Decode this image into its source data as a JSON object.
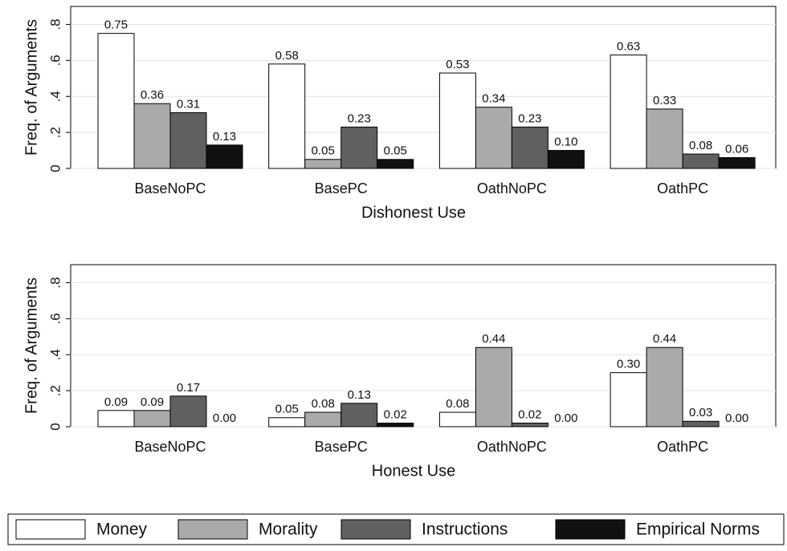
{
  "chart_data": [
    {
      "type": "bar",
      "xlabel": "Dishonest Use",
      "ylabel": "Freq. of Arguments",
      "categories": [
        "BaseNoPC",
        "BasePC",
        "OathNoPC",
        "OathPC"
      ],
      "ylim": [
        0,
        0.9
      ],
      "yticks": [
        0,
        {
          "value": 0.2,
          "label": ".2"
        },
        {
          "value": 0.4,
          "label": ".4"
        },
        {
          "value": 0.6,
          "label": ".6"
        },
        {
          "value": 0.8,
          "label": ".8"
        }
      ],
      "grid": true,
      "series": [
        {
          "name": "Money",
          "color": "#ffffff",
          "values": [
            0.75,
            0.58,
            0.53,
            0.63
          ],
          "value_labels": [
            "0.75",
            "0.58",
            "0.53",
            "0.63"
          ]
        },
        {
          "name": "Morality",
          "color": "#aaaaaa",
          "values": [
            0.36,
            0.05,
            0.34,
            0.33
          ],
          "value_labels": [
            "0.36",
            "0.05",
            "0.34",
            "0.33"
          ]
        },
        {
          "name": "Instructions",
          "color": "#606060",
          "values": [
            0.31,
            0.23,
            0.23,
            0.08
          ],
          "value_labels": [
            "0.31",
            "0.23",
            "0.23",
            "0.08"
          ]
        },
        {
          "name": "Empirical Norms",
          "color": "#111111",
          "values": [
            0.13,
            0.05,
            0.1,
            0.06
          ],
          "value_labels": [
            "0.13",
            "0.05",
            "0.10",
            "0.06"
          ]
        }
      ]
    },
    {
      "type": "bar",
      "xlabel": "Honest Use",
      "ylabel": "Freq. of Arguments",
      "categories": [
        "BaseNoPC",
        "BasePC",
        "OathNoPC",
        "OathPC"
      ],
      "ylim": [
        0,
        0.9
      ],
      "yticks": [
        0,
        {
          "value": 0.2,
          "label": ".2"
        },
        {
          "value": 0.4,
          "label": ".4"
        },
        {
          "value": 0.6,
          "label": ".6"
        },
        {
          "value": 0.8,
          "label": ".8"
        }
      ],
      "grid": true,
      "series": [
        {
          "color": "#ffffff",
          "values": [
            0.09,
            0.05,
            0.08,
            0.3
          ],
          "value_labels": [
            "0.09",
            "0.05",
            "0.08",
            "0.30"
          ]
        },
        {
          "color": "#aaaaaa",
          "values": [
            0.09,
            0.08,
            0.44,
            0.44
          ],
          "value_labels": [
            "0.09",
            "0.08",
            "0.44",
            "0.44"
          ]
        },
        {
          "color": "#606060",
          "values": [
            0.17,
            0.13,
            0.02,
            0.03
          ],
          "value_labels": [
            "0.17",
            "0.13",
            "0.02",
            "0.03"
          ]
        },
        {
          "color": "#111111",
          "values": [
            0.0,
            0.02,
            0.0,
            0.0
          ],
          "value_labels": [
            "0.00",
            "0.02",
            "0.00",
            "0.00"
          ]
        }
      ]
    }
  ]
}
